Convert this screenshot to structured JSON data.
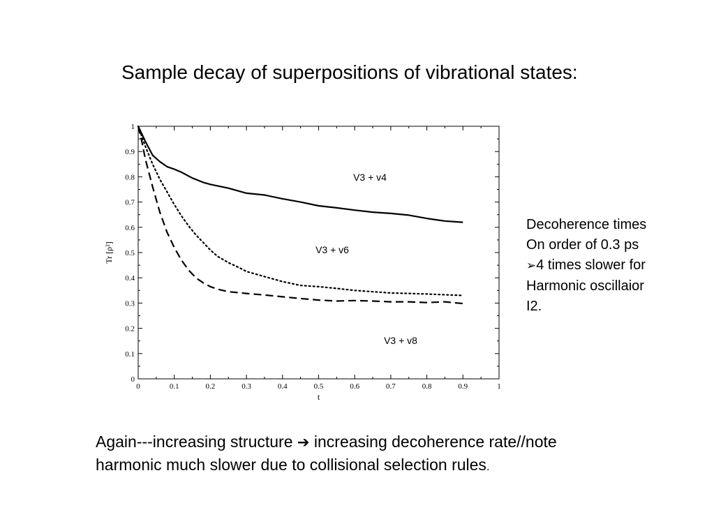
{
  "slide": {
    "title": "Sample decay of superpositions of vibrational states:",
    "side_note": {
      "lines": [
        "Decoherence times",
        "On order of 0.3 ps",
        "4 times slower for",
        "Harmonic oscillaior",
        "I2."
      ],
      "bullet_glyph": "➢"
    },
    "bottom_text": {
      "line1_before": "Again---increasing structure ",
      "arrow": "➔",
      "line1_after": " increasing decoherence rate//note",
      "line2": "harmonic much slower due to collisional selection rules",
      "line2_end": "."
    }
  },
  "chart_data": {
    "type": "line",
    "xlabel": "t",
    "ylabel": "Tr [ρ²]",
    "xlim": [
      0,
      1
    ],
    "ylim": [
      0,
      1
    ],
    "x_ticks": [
      "0",
      "0.1",
      "0.2",
      "0.3",
      "0.4",
      "0.5",
      "0.6",
      "0.7",
      "0.8",
      "0.9",
      "1"
    ],
    "y_ticks": [
      "0",
      "0.1",
      "0.2",
      "0.3",
      "0.4",
      "0.5",
      "0.6",
      "0.7",
      "0.8",
      "0.9",
      "1"
    ],
    "grid": false,
    "series": [
      {
        "name": "V3 + v4",
        "style": "solid",
        "x": [
          0,
          0.02,
          0.04,
          0.06,
          0.08,
          0.1,
          0.12,
          0.15,
          0.18,
          0.2,
          0.25,
          0.3,
          0.35,
          0.4,
          0.45,
          0.5,
          0.55,
          0.6,
          0.65,
          0.7,
          0.75,
          0.8,
          0.85,
          0.9
        ],
        "y": [
          1.0,
          0.94,
          0.885,
          0.86,
          0.84,
          0.83,
          0.818,
          0.795,
          0.778,
          0.77,
          0.755,
          0.735,
          0.728,
          0.713,
          0.7,
          0.685,
          0.677,
          0.668,
          0.66,
          0.655,
          0.648,
          0.635,
          0.625,
          0.62
        ]
      },
      {
        "name": "V3 + v6",
        "style": "dotted",
        "x": [
          0,
          0.01,
          0.02,
          0.04,
          0.06,
          0.08,
          0.1,
          0.12,
          0.14,
          0.16,
          0.18,
          0.2,
          0.22,
          0.25,
          0.28,
          0.3,
          0.35,
          0.4,
          0.45,
          0.5,
          0.55,
          0.6,
          0.65,
          0.7,
          0.75,
          0.8,
          0.85,
          0.9
        ],
        "y": [
          1.0,
          0.96,
          0.92,
          0.85,
          0.79,
          0.74,
          0.69,
          0.645,
          0.605,
          0.57,
          0.54,
          0.51,
          0.485,
          0.46,
          0.44,
          0.425,
          0.405,
          0.385,
          0.37,
          0.365,
          0.358,
          0.35,
          0.345,
          0.34,
          0.338,
          0.336,
          0.333,
          0.33
        ]
      },
      {
        "name": "V3 + v8",
        "style": "dashed",
        "x": [
          0,
          0.01,
          0.02,
          0.04,
          0.06,
          0.08,
          0.1,
          0.12,
          0.14,
          0.16,
          0.18,
          0.2,
          0.22,
          0.25,
          0.3,
          0.35,
          0.4,
          0.45,
          0.5,
          0.55,
          0.6,
          0.65,
          0.7,
          0.75,
          0.8,
          0.85,
          0.9
        ],
        "y": [
          1.0,
          0.94,
          0.87,
          0.76,
          0.66,
          0.58,
          0.52,
          0.47,
          0.43,
          0.4,
          0.38,
          0.365,
          0.355,
          0.345,
          0.338,
          0.332,
          0.325,
          0.318,
          0.312,
          0.308,
          0.31,
          0.308,
          0.305,
          0.305,
          0.302,
          0.305,
          0.298
        ]
      }
    ]
  }
}
